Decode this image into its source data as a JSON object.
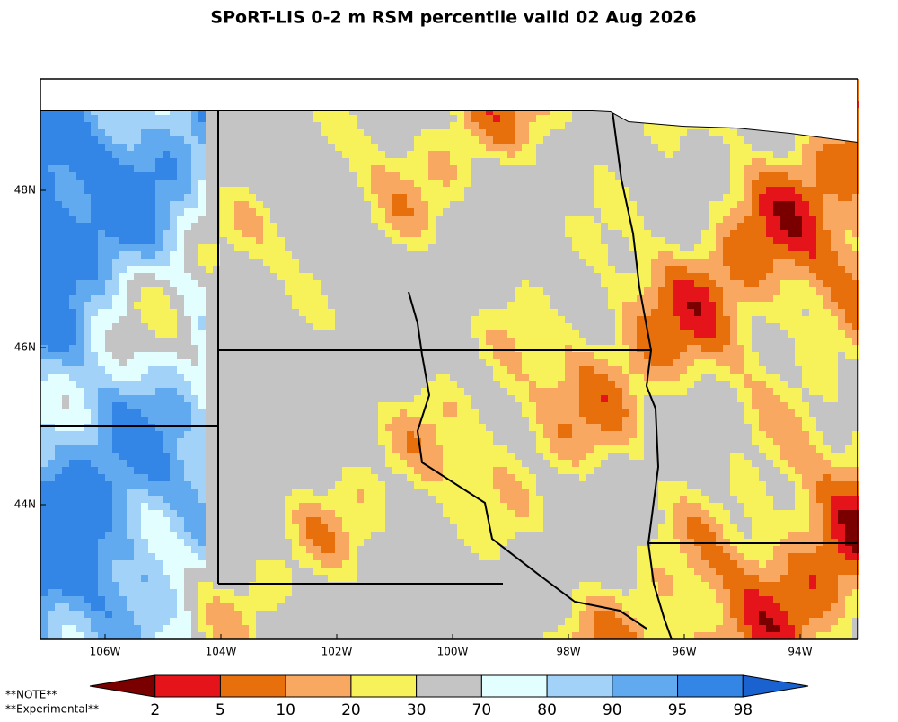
{
  "title": "SPoRT-LIS 0-2 m RSM percentile valid 02 Aug 2026",
  "map": {
    "lon_labels": [
      "106W",
      "104W",
      "102W",
      "100W",
      "98W",
      "96W",
      "94W"
    ],
    "lat_labels": [
      "48N",
      "46N",
      "44N"
    ]
  },
  "colorbar": {
    "colors": [
      "#7a0000",
      "#e4141a",
      "#e8700c",
      "#f8a860",
      "#f8f25a",
      "#c4c4c4",
      "#e2fefe",
      "#a2d2f8",
      "#62aaf0",
      "#3486e6",
      "#1a62d0"
    ],
    "bounds": [
      2,
      5,
      10,
      20,
      30,
      70,
      80,
      90,
      95,
      98
    ]
  },
  "notes": [
    "**NOTE**",
    "**Experimental**"
  ]
}
